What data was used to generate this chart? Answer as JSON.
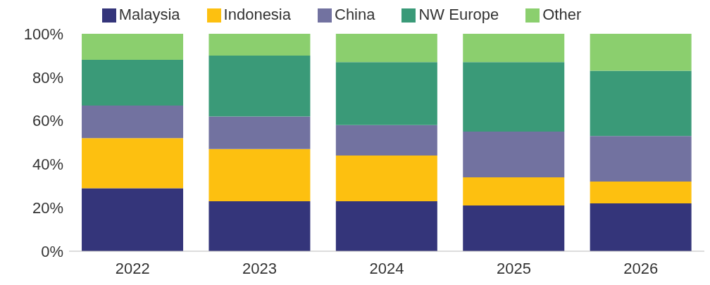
{
  "chart_data": {
    "type": "bar",
    "stacked": true,
    "categories": [
      "2022",
      "2023",
      "2024",
      "2025",
      "2026"
    ],
    "series": [
      {
        "name": "Malaysia",
        "color": "#34357a",
        "values": [
          29,
          23,
          23,
          21,
          22
        ]
      },
      {
        "name": "Indonesia",
        "color": "#fdc010",
        "values": [
          23,
          24,
          21,
          13,
          10
        ]
      },
      {
        "name": "China",
        "color": "#7272a0",
        "values": [
          15,
          15,
          14,
          21,
          21
        ]
      },
      {
        "name": "NW Europe",
        "color": "#3a9a78",
        "values": [
          21,
          28,
          29,
          32,
          30
        ]
      },
      {
        "name": "Other",
        "color": "#8bcf6e",
        "values": [
          12,
          10,
          13,
          13,
          17
        ]
      }
    ],
    "ylim": [
      0,
      100
    ],
    "yticks": [
      {
        "value": 0,
        "label": "0%"
      },
      {
        "value": 20,
        "label": "20%"
      },
      {
        "value": 40,
        "label": "40%"
      },
      {
        "value": 60,
        "label": "60%"
      },
      {
        "value": 80,
        "label": "80%"
      },
      {
        "value": 100,
        "label": "100%"
      }
    ],
    "grid": false,
    "legend": "top"
  }
}
